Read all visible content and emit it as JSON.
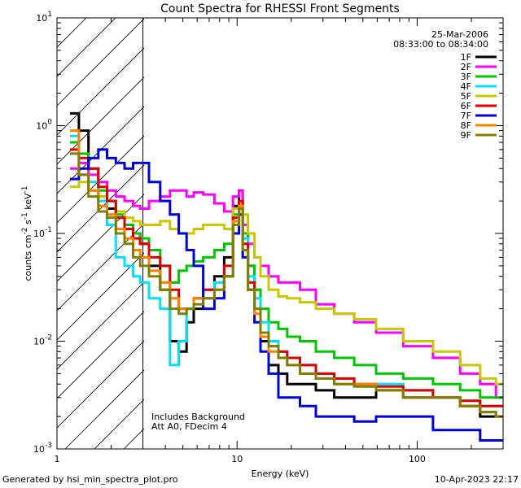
{
  "chart_data": {
    "type": "line",
    "title": "Count Spectra for RHESSI Front Segments",
    "xlabel": "Energy (keV)",
    "ylabel": "counts cm-2 s-1 keV-1",
    "xscale": "log",
    "yscale": "log",
    "xlim": [
      1,
      300
    ],
    "ylim": [
      0.001,
      10
    ],
    "x_ticks": [
      {
        "value": 1,
        "label": "1"
      },
      {
        "value": 10,
        "label": "10"
      },
      {
        "value": 100,
        "label": "100"
      }
    ],
    "y_ticks": [
      {
        "value": 0.001,
        "base": "10",
        "exp": "-3"
      },
      {
        "value": 0.01,
        "base": "10",
        "exp": "-2"
      },
      {
        "value": 0.1,
        "base": "10",
        "exp": "-1"
      },
      {
        "value": 1,
        "base": "10",
        "exp": "0"
      },
      {
        "value": 10,
        "base": "10",
        "exp": "1"
      }
    ],
    "hatched_region": [
      1,
      3
    ],
    "date": "25-Mar-2006",
    "time_range": "08:33:00 to 08:34:00",
    "annotations": [
      "Includes Background",
      "Att A0, FDecim 4"
    ],
    "x": [
      1.25,
      1.4,
      1.6,
      1.8,
      2.0,
      2.25,
      2.5,
      2.8,
      3.0,
      3.5,
      4.0,
      4.5,
      5.0,
      5.5,
      6.0,
      7.0,
      8.0,
      9.0,
      10.0,
      10.5,
      11.0,
      12.0,
      13.0,
      14.0,
      16.0,
      18.0,
      20.0,
      25.0,
      30.0,
      40.0,
      50.0,
      70.0,
      100.0,
      150.0,
      200.0,
      250.0,
      300.0
    ],
    "series": [
      {
        "name": "1F",
        "color": "#000000",
        "values": [
          1.3,
          0.9,
          0.4,
          0.22,
          0.17,
          0.14,
          0.12,
          0.1,
          0.08,
          0.05,
          0.03,
          0.01,
          0.008,
          0.015,
          0.02,
          0.03,
          0.04,
          0.06,
          0.18,
          0.25,
          0.1,
          0.05,
          0.03,
          0.01,
          0.006,
          0.005,
          0.004,
          0.004,
          0.0035,
          0.003,
          0.003,
          0.0035,
          0.003,
          0.003,
          0.0025,
          0.002,
          0.002
        ]
      },
      {
        "name": "2F",
        "color": "#ff00ff",
        "values": [
          0.4,
          0.45,
          0.35,
          0.3,
          0.25,
          0.22,
          0.2,
          0.18,
          0.17,
          0.2,
          0.22,
          0.25,
          0.25,
          0.22,
          0.24,
          0.23,
          0.19,
          0.16,
          0.22,
          0.25,
          0.12,
          0.08,
          0.06,
          0.05,
          0.04,
          0.035,
          0.035,
          0.03,
          0.022,
          0.018,
          0.015,
          0.012,
          0.009,
          0.007,
          0.005,
          0.004,
          0.003
        ]
      },
      {
        "name": "3F",
        "color": "#00c800",
        "values": [
          0.7,
          0.55,
          0.4,
          0.25,
          0.2,
          0.15,
          0.12,
          0.1,
          0.09,
          0.07,
          0.05,
          0.035,
          0.045,
          0.05,
          0.055,
          0.06,
          0.07,
          0.08,
          0.15,
          0.2,
          0.1,
          0.05,
          0.03,
          0.02,
          0.015,
          0.013,
          0.011,
          0.01,
          0.008,
          0.007,
          0.006,
          0.005,
          0.0045,
          0.004,
          0.0035,
          0.003,
          0.003
        ]
      },
      {
        "name": "4F",
        "color": "#00e0ff",
        "values": [
          0.8,
          0.35,
          0.3,
          0.2,
          0.12,
          0.06,
          0.05,
          0.04,
          0.035,
          0.025,
          0.02,
          0.006,
          0.01,
          0.02,
          0.025,
          0.03,
          0.035,
          0.05,
          0.13,
          0.2,
          0.09,
          0.04,
          0.025,
          0.015,
          0.01,
          0.008,
          0.007,
          0.006,
          0.005,
          0.0045,
          0.004,
          0.004,
          0.0035,
          0.003,
          0.0028,
          0.0025,
          0.0025
        ]
      },
      {
        "name": "5F",
        "color": "#c8c800",
        "values": [
          0.27,
          0.3,
          0.25,
          0.22,
          0.2,
          0.16,
          0.14,
          0.13,
          0.12,
          0.12,
          0.13,
          0.11,
          0.1,
          0.1,
          0.11,
          0.12,
          0.12,
          0.11,
          0.17,
          0.2,
          0.15,
          0.1,
          0.06,
          0.04,
          0.03,
          0.026,
          0.025,
          0.023,
          0.02,
          0.018,
          0.016,
          0.013,
          0.01,
          0.008,
          0.006,
          0.0045,
          0.004
        ]
      },
      {
        "name": "6F",
        "color": "#e00000",
        "values": [
          0.6,
          0.5,
          0.4,
          0.27,
          0.2,
          0.14,
          0.11,
          0.09,
          0.08,
          0.06,
          0.05,
          0.03,
          0.02,
          0.02,
          0.025,
          0.03,
          0.03,
          0.05,
          0.14,
          0.2,
          0.08,
          0.035,
          0.02,
          0.012,
          0.009,
          0.008,
          0.007,
          0.006,
          0.005,
          0.0045,
          0.004,
          0.0038,
          0.0035,
          0.003,
          0.0028,
          0.0025,
          0.0025
        ]
      },
      {
        "name": "7F",
        "color": "#0000e0",
        "values": [
          0.32,
          0.4,
          0.5,
          0.6,
          0.5,
          0.45,
          0.4,
          0.45,
          0.45,
          0.3,
          0.2,
          0.15,
          0.1,
          0.07,
          0.05,
          0.02,
          0.025,
          0.04,
          0.1,
          0.15,
          0.06,
          0.03,
          0.015,
          0.008,
          0.005,
          0.003,
          0.003,
          0.0025,
          0.002,
          0.002,
          0.0018,
          0.002,
          0.002,
          0.0015,
          0.0015,
          0.0012,
          0.0012
        ]
      },
      {
        "name": "8F",
        "color": "#ff8000",
        "values": [
          0.9,
          0.35,
          0.25,
          0.18,
          0.15,
          0.11,
          0.09,
          0.07,
          0.06,
          0.045,
          0.035,
          0.025,
          0.02,
          0.02,
          0.025,
          0.025,
          0.03,
          0.04,
          0.13,
          0.18,
          0.07,
          0.03,
          0.018,
          0.011,
          0.008,
          0.007,
          0.006,
          0.005,
          0.0045,
          0.004,
          0.004,
          0.0035,
          0.003,
          0.003,
          0.0025,
          0.0022,
          0.002
        ]
      },
      {
        "name": "9F",
        "color": "#808000",
        "values": [
          0.55,
          0.35,
          0.22,
          0.16,
          0.14,
          0.1,
          0.08,
          0.06,
          0.05,
          0.04,
          0.03,
          0.02,
          0.018,
          0.02,
          0.022,
          0.025,
          0.03,
          0.04,
          0.12,
          0.17,
          0.07,
          0.03,
          0.02,
          0.012,
          0.009,
          0.007,
          0.006,
          0.005,
          0.0045,
          0.004,
          0.0038,
          0.0035,
          0.003,
          0.003,
          0.0025,
          0.0022,
          0.002
        ]
      }
    ]
  },
  "footer": {
    "left": "Generated by hsi_min_spectra_plot.pro",
    "right": "10-Apr-2023 22:17"
  }
}
